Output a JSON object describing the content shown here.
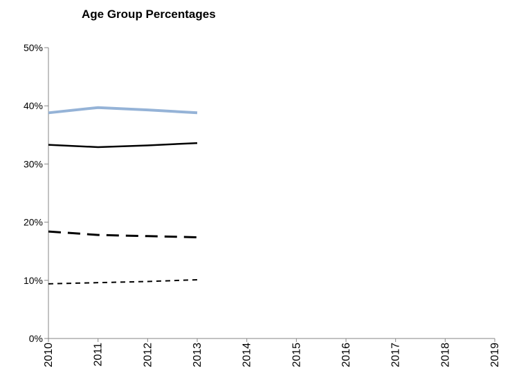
{
  "chart_data": {
    "type": "line",
    "title": "Age Group Percentages",
    "x": [
      2010,
      2011,
      2012,
      2013
    ],
    "xlim": [
      2010,
      2019
    ],
    "xticks": [
      2010,
      2011,
      2012,
      2013,
      2014,
      2015,
      2016,
      2017,
      2018,
      2019
    ],
    "ylim": [
      0,
      50
    ],
    "yticks": [
      {
        "value": 0,
        "label": "0%"
      },
      {
        "value": 10,
        "label": "10%"
      },
      {
        "value": 20,
        "label": "20%"
      },
      {
        "value": 30,
        "label": "30%"
      },
      {
        "value": 40,
        "label": "40%"
      },
      {
        "value": 50,
        "label": "50%"
      }
    ],
    "grid": false,
    "series": [
      {
        "color": "#95b3d7",
        "dash": "solid",
        "line_width": 4,
        "values": [
          38.8,
          39.7,
          39.3,
          38.8
        ]
      },
      {
        "color": "#000000",
        "dash": "solid",
        "line_width": 2.5,
        "values": [
          33.3,
          32.9,
          33.2,
          33.6
        ]
      },
      {
        "color": "#000000",
        "dash": "long-dash",
        "line_width": 3,
        "values": [
          18.4,
          17.8,
          17.6,
          17.4
        ]
      },
      {
        "color": "#000000",
        "dash": "short-dash",
        "line_width": 2,
        "values": [
          9.4,
          9.6,
          9.8,
          10.1
        ]
      }
    ]
  }
}
